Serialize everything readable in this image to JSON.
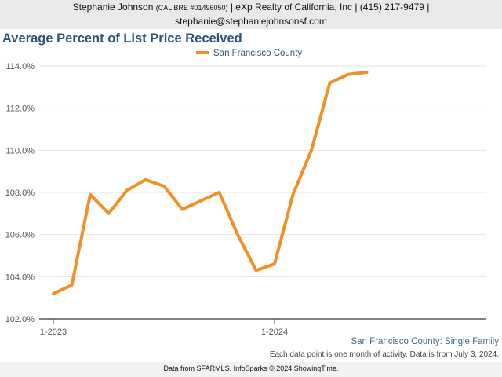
{
  "header": {
    "agent_name": "Stephanie Johnson",
    "license": "(CAL BRE #01496050)",
    "company_phone": "| eXp Realty of California, Inc | (415) 217-9479 |",
    "email": "stephanie@stephaniejohnsonsf.com"
  },
  "subtitle": "San Francisco County: Single Family",
  "note": "Each data point is one month of activity. Data is from July 3, 2024.",
  "footer": "Data from SFARMLS. InfoSparks © 2024 ShowingTime.",
  "colors": {
    "series": "#f1902a",
    "title": "#2e5475",
    "header_bg": "#e9e9e9",
    "grid": "#e3e3e3",
    "axis": "#555555"
  },
  "chart_data": {
    "type": "line",
    "title": "Average Percent of List Price Received",
    "x": [
      "2023-01",
      "2023-02",
      "2023-03",
      "2023-04",
      "2023-05",
      "2023-06",
      "2023-07",
      "2023-08",
      "2023-09",
      "2023-10",
      "2023-11",
      "2023-12",
      "2024-01",
      "2024-02",
      "2024-03",
      "2024-04",
      "2024-05",
      "2024-06"
    ],
    "x_tick_labels": [
      {
        "label": "1-2023",
        "at": "2023-01"
      },
      {
        "label": "1-2024",
        "at": "2024-01"
      }
    ],
    "series": [
      {
        "name": "San Francisco County",
        "values": [
          103.2,
          103.6,
          107.9,
          107.0,
          108.1,
          108.6,
          108.3,
          107.2,
          107.6,
          108.0,
          106.0,
          104.3,
          104.6,
          107.9,
          110.0,
          113.2,
          113.6,
          113.7
        ]
      }
    ],
    "y_ticks": [
      "102.0%",
      "104.0%",
      "106.0%",
      "108.0%",
      "110.0%",
      "112.0%",
      "114.0%"
    ],
    "ylim": [
      102,
      114
    ],
    "grid": true,
    "legend_position": "top-center"
  }
}
